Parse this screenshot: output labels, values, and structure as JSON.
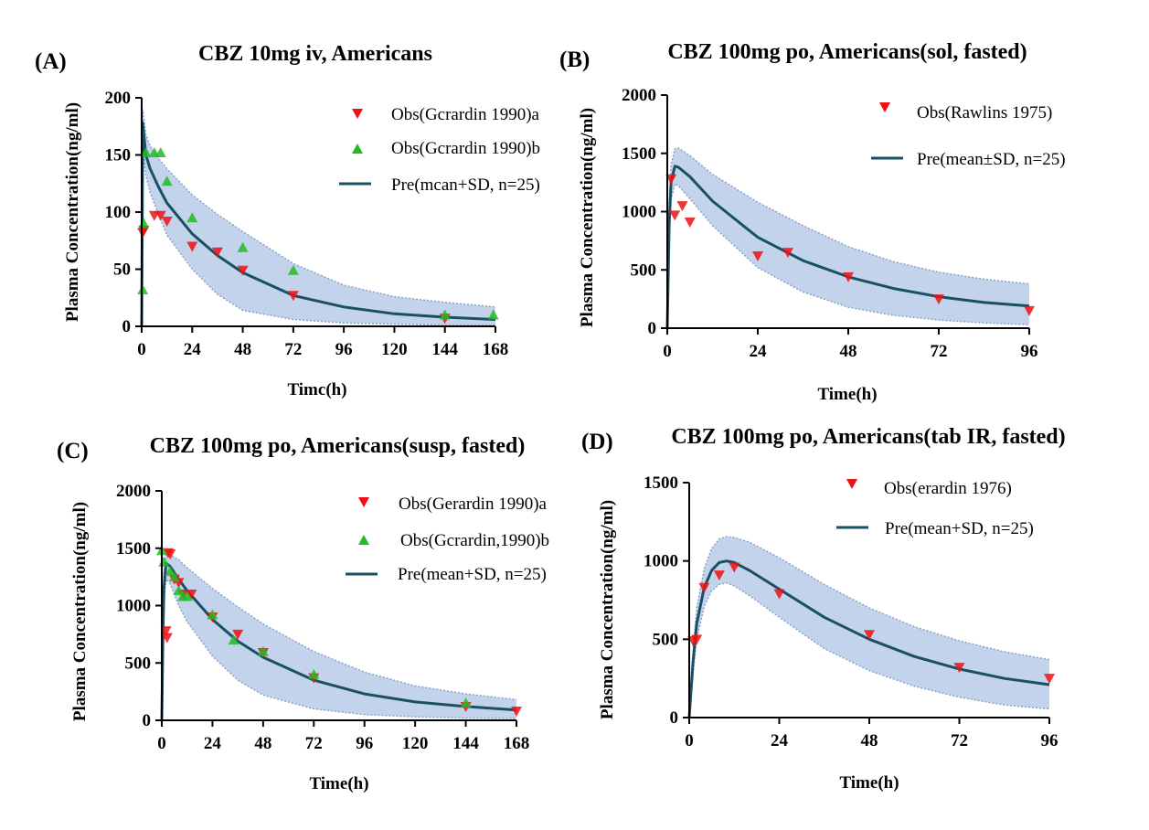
{
  "colors": {
    "band": "#b4c8e6",
    "band_edge": "#8aa2c8",
    "line": "#1a5064",
    "obs_a": "#ee1111",
    "obs_b": "#22bb22",
    "axis": "#000000"
  },
  "chart_data": [
    {
      "label": "(A)",
      "type": "line",
      "title": "CBZ 10mg iv, Americans",
      "xlabel": "Timc(h)",
      "ylabel": "Plasma Concentration(ng/ml)",
      "xlim": [
        0,
        168
      ],
      "ylim": [
        0,
        200
      ],
      "xticks": [
        0,
        24,
        48,
        72,
        96,
        120,
        144,
        168
      ],
      "yticks": [
        0,
        50,
        100,
        150,
        200
      ],
      "legend": {
        "position": "top-right",
        "entries": [
          "Obs(Gcrardin 1990)a",
          "Obs(Gcrardin 1990)b",
          "Pre(mcan+SD, n=25)"
        ]
      },
      "series": [
        {
          "name": "Obs(Gcrardin 1990)a",
          "kind": "obs",
          "marker": "triangle-down",
          "color": "#ee1111",
          "x": [
            0.5,
            1,
            6,
            9,
            12,
            24,
            36,
            48,
            72,
            144
          ],
          "y": [
            82,
            84,
            97,
            97,
            92,
            70,
            65,
            49,
            27,
            7
          ]
        },
        {
          "name": "Obs(Gcrardin 1990)b",
          "kind": "obs",
          "marker": "triangle-up",
          "color": "#22bb22",
          "x": [
            0.5,
            1,
            2,
            6,
            9,
            12,
            24,
            48,
            72,
            144,
            167
          ],
          "y": [
            32,
            90,
            152,
            152,
            152,
            127,
            95,
            69,
            49,
            10,
            10
          ]
        },
        {
          "name": "Pre(mcan+SD, n=25)",
          "kind": "pred",
          "x": [
            0,
            0.5,
            1,
            2,
            4,
            8,
            12,
            24,
            36,
            48,
            72,
            96,
            120,
            144,
            168
          ],
          "y": [
            0,
            178,
            168,
            150,
            138,
            122,
            108,
            81,
            62,
            47,
            27,
            17,
            11,
            8,
            6
          ],
          "upper": [
            0,
            190,
            182,
            168,
            158,
            147,
            138,
            115,
            98,
            83,
            55,
            36,
            26,
            21,
            17
          ],
          "lower": [
            0,
            158,
            148,
            132,
            117,
            98,
            80,
            50,
            28,
            14,
            6,
            3,
            2,
            1,
            1
          ]
        }
      ]
    },
    {
      "label": "(B)",
      "type": "line",
      "title": "CBZ 100mg po, Americans(sol, fasted)",
      "xlabel": "Time(h)",
      "ylabel": "Plasma Concentration(ng/ml)",
      "xlim": [
        0,
        96
      ],
      "ylim": [
        0,
        2000
      ],
      "xticks": [
        0,
        24,
        48,
        72,
        96
      ],
      "yticks": [
        0,
        500,
        1000,
        1500,
        2000
      ],
      "legend": {
        "position": "top-right",
        "entries": [
          "Obs(Rawlins 1975)",
          "Pre(mean±SD, n=25)"
        ]
      },
      "series": [
        {
          "name": "Obs(Rawlins 1975)",
          "kind": "obs",
          "marker": "triangle-down",
          "color": "#ee1111",
          "x": [
            1,
            2,
            4,
            6,
            24,
            32,
            48,
            72,
            96
          ],
          "y": [
            1280,
            970,
            1050,
            910,
            620,
            650,
            440,
            250,
            150
          ]
        },
        {
          "name": "Pre(mean±SD, n=25)",
          "kind": "pred",
          "x": [
            0,
            0.5,
            1,
            2,
            3,
            6,
            12,
            24,
            36,
            48,
            60,
            72,
            84,
            96
          ],
          "y": [
            0,
            900,
            1250,
            1390,
            1380,
            1300,
            1090,
            780,
            580,
            440,
            340,
            270,
            220,
            190
          ],
          "upper": [
            0,
            1000,
            1400,
            1540,
            1545,
            1480,
            1320,
            1080,
            880,
            700,
            570,
            480,
            420,
            380
          ],
          "lower": [
            0,
            780,
            1100,
            1240,
            1220,
            1110,
            880,
            520,
            310,
            180,
            110,
            70,
            45,
            30
          ]
        }
      ]
    },
    {
      "label": "(C)",
      "type": "line",
      "title": "CBZ 100mg po, Americans(susp, fasted)",
      "xlabel": "Time(h)",
      "ylabel": "Plasma Concentration(ng/ml)",
      "xlim": [
        0,
        168
      ],
      "ylim": [
        0,
        2000
      ],
      "xticks": [
        0,
        24,
        48,
        72,
        96,
        120,
        144,
        168
      ],
      "yticks": [
        0,
        500,
        1000,
        1500,
        2000
      ],
      "legend": {
        "position": "top-right",
        "entries": [
          "Obs(Gerardin 1990)a",
          "Obs(Gcrardin,1990)b",
          "Pre(mean+SD, n=25)"
        ]
      },
      "series": [
        {
          "name": "Obs(Gerardin 1990)a",
          "kind": "obs",
          "marker": "triangle-down",
          "color": "#ee1111",
          "x": [
            2,
            2.5,
            3,
            4,
            6,
            8,
            10,
            14,
            24,
            36,
            48,
            72,
            144,
            168
          ],
          "y": [
            780,
            720,
            1460,
            1450,
            1230,
            1200,
            1100,
            1100,
            900,
            750,
            590,
            370,
            120,
            80
          ]
        },
        {
          "name": "Obs(Gcrardin,1990)b",
          "kind": "obs",
          "marker": "triangle-up",
          "color": "#22bb22",
          "x": [
            0,
            1,
            4,
            6,
            8,
            10,
            12,
            24,
            34,
            48,
            72,
            144
          ],
          "y": [
            1480,
            1380,
            1300,
            1250,
            1130,
            1080,
            1080,
            920,
            700,
            600,
            400,
            150
          ]
        },
        {
          "name": "Pre(mean+SD, n=25)",
          "kind": "pred",
          "x": [
            0,
            0.5,
            1,
            2,
            4,
            8,
            12,
            24,
            36,
            48,
            72,
            96,
            120,
            144,
            168
          ],
          "y": [
            0,
            700,
            1150,
            1370,
            1340,
            1230,
            1130,
            880,
            690,
            550,
            350,
            230,
            160,
            120,
            90
          ],
          "upper": [
            0,
            780,
            1280,
            1440,
            1440,
            1400,
            1330,
            1150,
            990,
            840,
            600,
            420,
            300,
            230,
            180
          ],
          "lower": [
            0,
            620,
            1020,
            1230,
            1190,
            1000,
            860,
            560,
            350,
            220,
            100,
            50,
            30,
            20,
            15
          ]
        }
      ]
    },
    {
      "label": "(D)",
      "type": "line",
      "title": "CBZ 100mg po, Americans(tab IR, fasted)",
      "xlabel": "Time(h)",
      "ylabel": "Plasma Concentration(ng/ml)",
      "xlim": [
        0,
        96
      ],
      "ylim": [
        0,
        1500
      ],
      "xticks": [
        0,
        24,
        48,
        72,
        96
      ],
      "yticks": [
        0,
        500,
        1000,
        1500
      ],
      "legend": {
        "position": "top-center",
        "entries": [
          "Obs(erardin 1976)",
          "Pre(mean+SD, n=25)"
        ]
      },
      "series": [
        {
          "name": "Obs(erardin 1976)",
          "kind": "obs",
          "marker": "triangle-down",
          "color": "#ee1111",
          "x": [
            1,
            2,
            4,
            8,
            12,
            24,
            48,
            72,
            96
          ],
          "y": [
            490,
            500,
            830,
            910,
            960,
            790,
            530,
            320,
            250
          ]
        },
        {
          "name": "Pre(mean+SD, n=25)",
          "kind": "pred",
          "x": [
            0,
            1,
            2,
            4,
            6,
            8,
            10,
            12,
            16,
            24,
            36,
            48,
            60,
            72,
            84,
            96
          ],
          "y": [
            0,
            350,
            600,
            830,
            940,
            990,
            1000,
            990,
            940,
            820,
            640,
            500,
            390,
            310,
            250,
            210
          ],
          "upper": [
            0,
            420,
            700,
            950,
            1080,
            1140,
            1155,
            1150,
            1120,
            1020,
            850,
            700,
            580,
            490,
            420,
            370
          ],
          "lower": [
            0,
            280,
            500,
            710,
            810,
            850,
            860,
            840,
            780,
            640,
            440,
            300,
            200,
            130,
            80,
            55
          ]
        }
      ]
    }
  ]
}
